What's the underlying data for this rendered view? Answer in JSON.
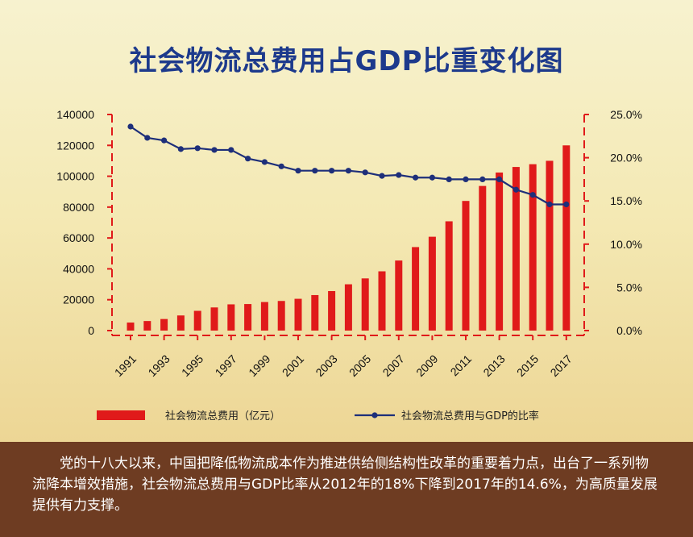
{
  "title": "社会物流总费用占GDP比重变化图",
  "chart_data": {
    "type": "bar",
    "years": [
      1991,
      1992,
      1993,
      1994,
      1995,
      1996,
      1997,
      1998,
      1999,
      2000,
      2001,
      2002,
      2003,
      2004,
      2005,
      2006,
      2007,
      2008,
      2009,
      2010,
      2011,
      2012,
      2013,
      2014,
      2015,
      2016,
      2017
    ],
    "x_tick_labels": [
      "1991",
      "1993",
      "1995",
      "1997",
      "1999",
      "2001",
      "2003",
      "2005",
      "2007",
      "2009",
      "2011",
      "2013",
      "2015",
      "2017"
    ],
    "series": [
      {
        "name": "社会物流总费用（亿元）",
        "type": "bar",
        "axis": "left",
        "color": "#e01a1a",
        "values": [
          5200,
          6200,
          7500,
          9800,
          12800,
          15000,
          17000,
          17200,
          18500,
          19200,
          20600,
          23000,
          25600,
          30000,
          33800,
          38400,
          45400,
          54100,
          60800,
          70800,
          84000,
          93700,
          102400,
          106000,
          107800,
          110000,
          120000
        ]
      },
      {
        "name": "社会物流总费用与GDP的比率",
        "type": "line",
        "axis": "right",
        "color": "#1e2f7a",
        "values": [
          23.6,
          22.3,
          22.0,
          21.0,
          21.1,
          20.9,
          20.9,
          19.9,
          19.5,
          19.0,
          18.5,
          18.5,
          18.5,
          18.5,
          18.3,
          17.9,
          18.0,
          17.7,
          17.7,
          17.5,
          17.5,
          17.5,
          17.5,
          16.3,
          15.7,
          14.6,
          14.6
        ]
      }
    ],
    "left_axis": {
      "ylim": [
        0,
        140000
      ],
      "ticks": [
        "0",
        "20000",
        "40000",
        "60000",
        "80000",
        "100000",
        "120000",
        "140000"
      ]
    },
    "right_axis": {
      "ylim": [
        0,
        25
      ],
      "ticks": [
        "0.0%",
        "5.0%",
        "10.0%",
        "15.0%",
        "20.0%",
        "25.0%"
      ]
    },
    "legend_position": "bottom"
  },
  "footer_text": "党的十八大以来，中国把降低物流成本作为推进供给侧结构性改革的重要着力点，出台了一系列物流降本增效措施，社会物流总费用与GDP比率从2012年的18%下降到2017年的14.6%，为高质量发展提供有力支撑。"
}
